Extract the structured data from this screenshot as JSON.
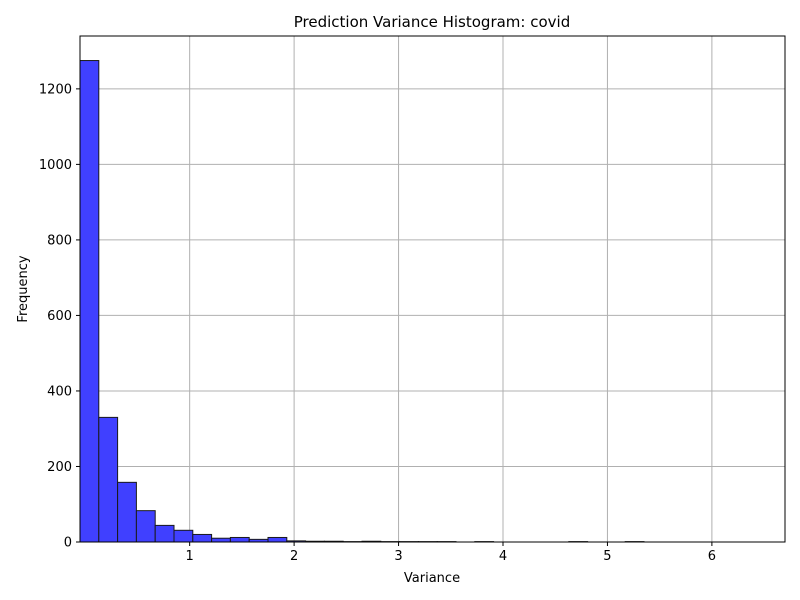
{
  "chart_data": {
    "type": "bar",
    "title": "Prediction Variance Histogram: covid",
    "xlabel": "Variance",
    "ylabel": "Frequency",
    "xlim": [
      -0.05,
      6.7
    ],
    "ylim": [
      0,
      1340
    ],
    "grid": true,
    "bar_color": "#4040ff",
    "edge_color": "#1a1a1a",
    "x_ticks": [
      {
        "value": 1,
        "label": "1"
      },
      {
        "value": 2,
        "label": "2"
      },
      {
        "value": 3,
        "label": "3"
      },
      {
        "value": 4,
        "label": "4"
      },
      {
        "value": 5,
        "label": "5"
      },
      {
        "value": 6,
        "label": "6"
      }
    ],
    "y_ticks": [
      {
        "value": 0,
        "label": "0"
      },
      {
        "value": 200,
        "label": "200"
      },
      {
        "value": 400,
        "label": "400"
      },
      {
        "value": 600,
        "label": "600"
      },
      {
        "value": 800,
        "label": "800"
      },
      {
        "value": 1000,
        "label": "1000"
      },
      {
        "value": 1200,
        "label": "1200"
      }
    ],
    "bins": [
      {
        "start": -0.05,
        "end": 0.13,
        "count": 1275
      },
      {
        "start": 0.13,
        "end": 0.31,
        "count": 330
      },
      {
        "start": 0.31,
        "end": 0.49,
        "count": 158
      },
      {
        "start": 0.49,
        "end": 0.67,
        "count": 83
      },
      {
        "start": 0.67,
        "end": 0.85,
        "count": 44
      },
      {
        "start": 0.85,
        "end": 1.03,
        "count": 31
      },
      {
        "start": 1.03,
        "end": 1.21,
        "count": 20
      },
      {
        "start": 1.21,
        "end": 1.39,
        "count": 10
      },
      {
        "start": 1.39,
        "end": 1.57,
        "count": 12
      },
      {
        "start": 1.57,
        "end": 1.75,
        "count": 7
      },
      {
        "start": 1.75,
        "end": 1.93,
        "count": 12
      },
      {
        "start": 1.93,
        "end": 2.11,
        "count": 3
      },
      {
        "start": 2.11,
        "end": 2.29,
        "count": 2
      },
      {
        "start": 2.29,
        "end": 2.47,
        "count": 2
      },
      {
        "start": 2.47,
        "end": 2.65,
        "count": 1
      },
      {
        "start": 2.65,
        "end": 2.83,
        "count": 2
      },
      {
        "start": 2.83,
        "end": 3.01,
        "count": 1
      },
      {
        "start": 3.01,
        "end": 3.19,
        "count": 1
      },
      {
        "start": 3.19,
        "end": 3.37,
        "count": 1
      },
      {
        "start": 3.37,
        "end": 3.55,
        "count": 1
      },
      {
        "start": 3.55,
        "end": 3.73,
        "count": 0
      },
      {
        "start": 3.73,
        "end": 3.91,
        "count": 1
      },
      {
        "start": 3.91,
        "end": 4.09,
        "count": 0
      },
      {
        "start": 4.09,
        "end": 4.27,
        "count": 0
      },
      {
        "start": 4.27,
        "end": 4.45,
        "count": 0
      },
      {
        "start": 4.45,
        "end": 4.63,
        "count": 0
      },
      {
        "start": 4.63,
        "end": 4.81,
        "count": 1
      },
      {
        "start": 4.81,
        "end": 4.99,
        "count": 0
      },
      {
        "start": 4.99,
        "end": 5.17,
        "count": 0
      },
      {
        "start": 5.17,
        "end": 5.35,
        "count": 1
      }
    ]
  }
}
